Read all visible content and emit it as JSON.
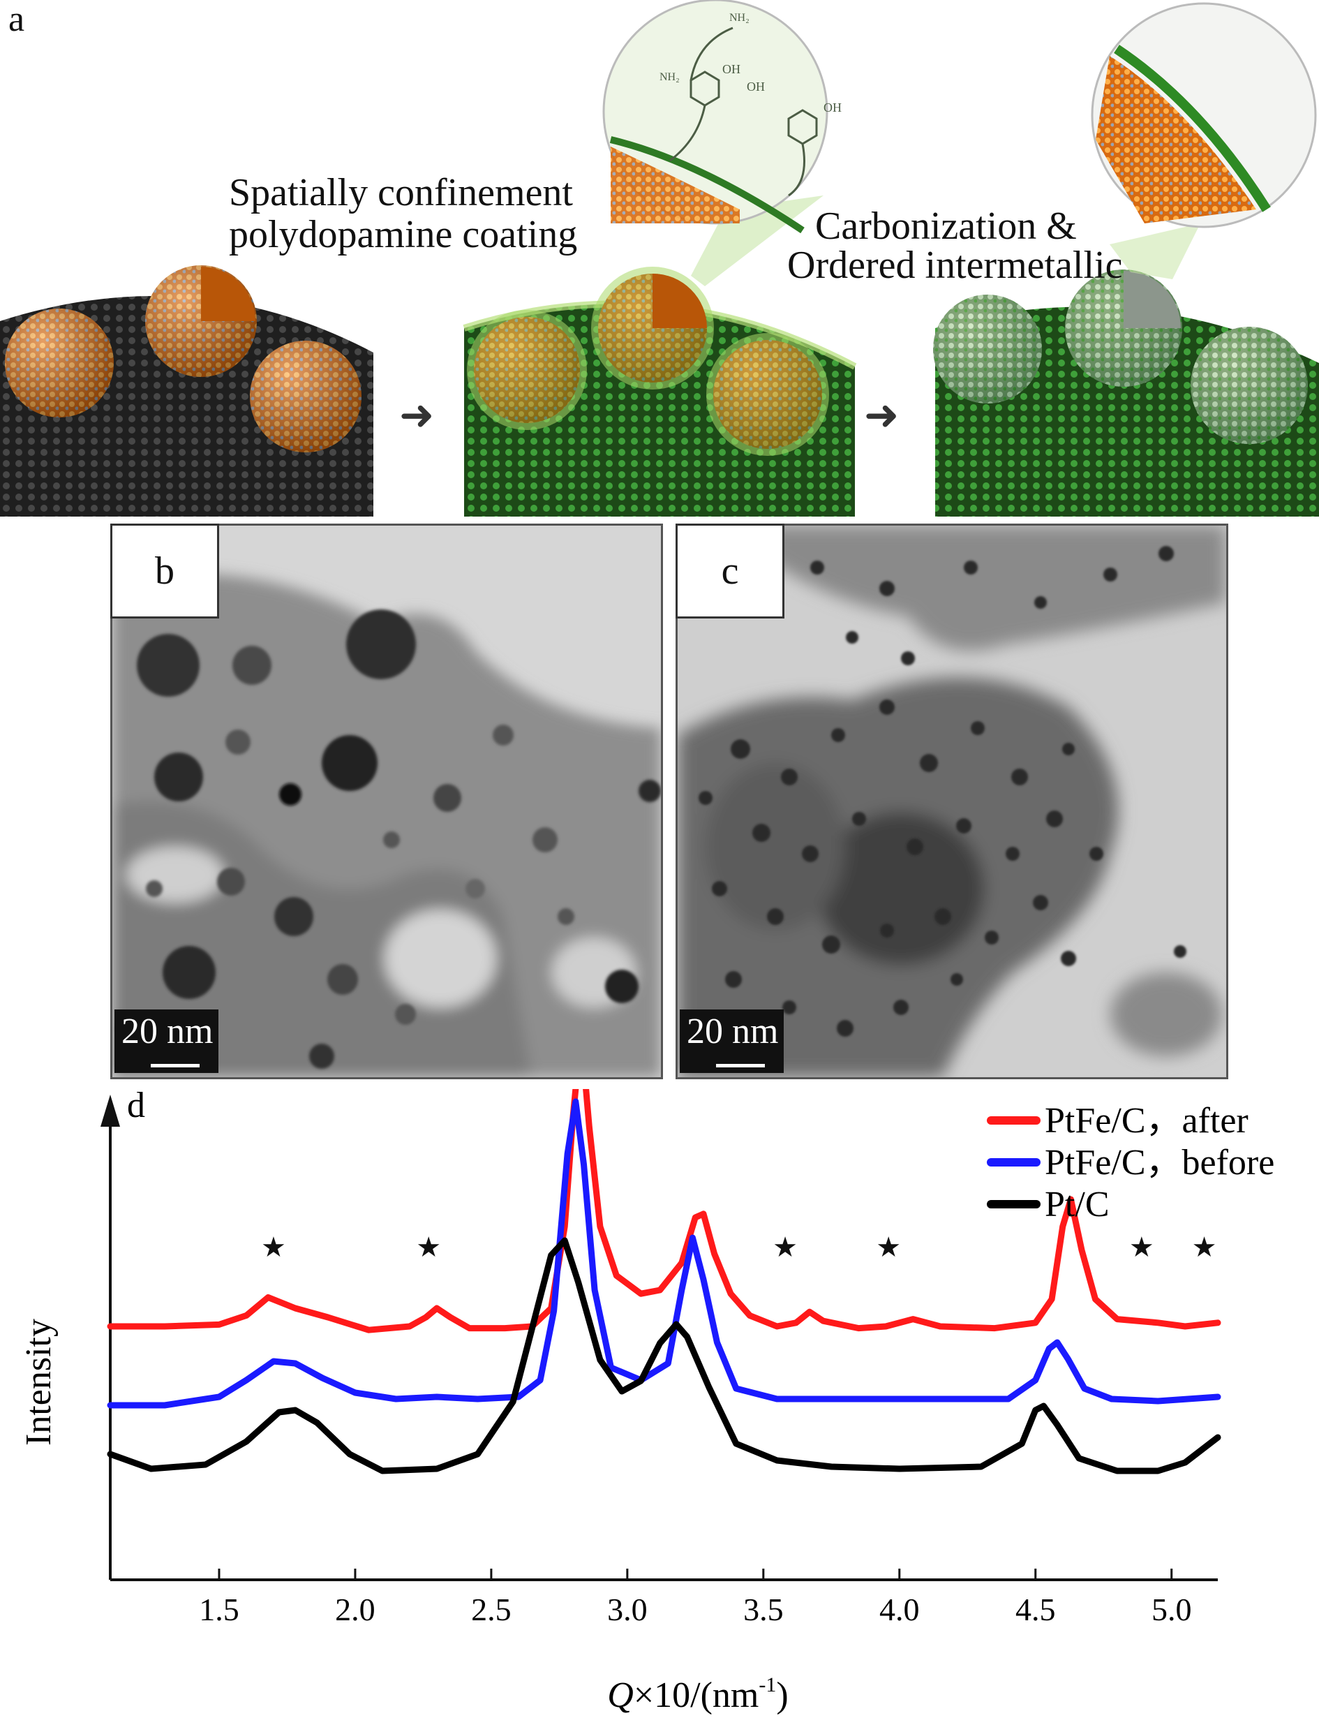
{
  "panel_a": {
    "letter": "a",
    "step1_line1": "Spatially confinement",
    "step1_line2": "polydopamine coating",
    "step2_line1": "Carbonization &",
    "step2_line2": "Ordered intermetallic",
    "arrow": "➜"
  },
  "panel_b": {
    "letter": "b",
    "scale_label": "20 nm"
  },
  "panel_c": {
    "letter": "c",
    "scale_label": "20 nm"
  },
  "chart_data": {
    "type": "line",
    "panel_letter": "d",
    "xlabel_italic": "Q",
    "xlabel_rest": "×10/(nm",
    "xlabel_sup": "-1",
    "xlabel_close": ")",
    "ylabel": "Intensity",
    "xlim": [
      1.1,
      5.17
    ],
    "xticks": [
      1.5,
      2.0,
      2.5,
      3.0,
      3.5,
      4.0,
      4.5,
      5.0
    ],
    "xtick_labels": [
      "1.5",
      "2.0",
      "2.5",
      "3.0",
      "3.5",
      "4.0",
      "4.5",
      "5.0"
    ],
    "y_units": "arbitrary (intensity, offset traces)",
    "legend_position": "top-right",
    "star_marker_x": [
      1.7,
      2.27,
      3.58,
      3.96,
      4.89,
      5.12
    ],
    "series": [
      {
        "name": "PtFe/C, after",
        "label": "PtFe/C，after",
        "color": "#ff1a1a",
        "points": [
          [
            1.1,
            0.0
          ],
          [
            1.3,
            0.0
          ],
          [
            1.5,
            0.01
          ],
          [
            1.6,
            0.06
          ],
          [
            1.68,
            0.16
          ],
          [
            1.78,
            0.1
          ],
          [
            1.9,
            0.05
          ],
          [
            2.05,
            -0.02
          ],
          [
            2.2,
            0.0
          ],
          [
            2.26,
            0.05
          ],
          [
            2.3,
            0.1
          ],
          [
            2.35,
            0.05
          ],
          [
            2.42,
            -0.01
          ],
          [
            2.55,
            -0.01
          ],
          [
            2.65,
            0.0
          ],
          [
            2.72,
            0.1
          ],
          [
            2.77,
            0.55
          ],
          [
            2.8,
            1.15
          ],
          [
            2.83,
            1.62
          ],
          [
            2.86,
            1.1
          ],
          [
            2.9,
            0.55
          ],
          [
            2.96,
            0.28
          ],
          [
            3.05,
            0.18
          ],
          [
            3.12,
            0.2
          ],
          [
            3.2,
            0.35
          ],
          [
            3.25,
            0.6
          ],
          [
            3.28,
            0.62
          ],
          [
            3.32,
            0.4
          ],
          [
            3.38,
            0.18
          ],
          [
            3.45,
            0.06
          ],
          [
            3.55,
            0.0
          ],
          [
            3.62,
            0.02
          ],
          [
            3.67,
            0.08
          ],
          [
            3.72,
            0.03
          ],
          [
            3.85,
            -0.01
          ],
          [
            3.95,
            0.0
          ],
          [
            4.05,
            0.04
          ],
          [
            4.15,
            0.0
          ],
          [
            4.35,
            -0.01
          ],
          [
            4.5,
            0.02
          ],
          [
            4.56,
            0.15
          ],
          [
            4.6,
            0.55
          ],
          [
            4.63,
            0.7
          ],
          [
            4.67,
            0.42
          ],
          [
            4.72,
            0.15
          ],
          [
            4.8,
            0.04
          ],
          [
            4.95,
            0.02
          ],
          [
            5.05,
            0.0
          ],
          [
            5.17,
            0.02
          ]
        ]
      },
      {
        "name": "PtFe/C, before",
        "label": "PtFe/C，before",
        "color": "#1a1aff",
        "points": [
          [
            1.1,
            0.0
          ],
          [
            1.3,
            0.0
          ],
          [
            1.5,
            0.04
          ],
          [
            1.6,
            0.12
          ],
          [
            1.7,
            0.21
          ],
          [
            1.78,
            0.2
          ],
          [
            1.88,
            0.13
          ],
          [
            2.0,
            0.06
          ],
          [
            2.15,
            0.03
          ],
          [
            2.3,
            0.04
          ],
          [
            2.45,
            0.03
          ],
          [
            2.6,
            0.04
          ],
          [
            2.68,
            0.12
          ],
          [
            2.73,
            0.45
          ],
          [
            2.78,
            1.2
          ],
          [
            2.81,
            1.45
          ],
          [
            2.84,
            1.15
          ],
          [
            2.88,
            0.55
          ],
          [
            2.94,
            0.18
          ],
          [
            3.05,
            0.12
          ],
          [
            3.15,
            0.2
          ],
          [
            3.2,
            0.55
          ],
          [
            3.24,
            0.8
          ],
          [
            3.28,
            0.6
          ],
          [
            3.33,
            0.3
          ],
          [
            3.4,
            0.08
          ],
          [
            3.55,
            0.03
          ],
          [
            3.8,
            0.03
          ],
          [
            4.1,
            0.03
          ],
          [
            4.4,
            0.03
          ],
          [
            4.5,
            0.12
          ],
          [
            4.55,
            0.27
          ],
          [
            4.58,
            0.3
          ],
          [
            4.62,
            0.22
          ],
          [
            4.68,
            0.08
          ],
          [
            4.78,
            0.03
          ],
          [
            4.95,
            0.02
          ],
          [
            5.17,
            0.04
          ]
        ]
      },
      {
        "name": "Pt/C",
        "label": "Pt/C",
        "color": "#000000",
        "points": [
          [
            1.1,
            0.1
          ],
          [
            1.25,
            0.03
          ],
          [
            1.45,
            0.05
          ],
          [
            1.6,
            0.16
          ],
          [
            1.72,
            0.3
          ],
          [
            1.78,
            0.31
          ],
          [
            1.86,
            0.25
          ],
          [
            1.98,
            0.1
          ],
          [
            2.1,
            0.02
          ],
          [
            2.3,
            0.03
          ],
          [
            2.45,
            0.1
          ],
          [
            2.58,
            0.35
          ],
          [
            2.66,
            0.75
          ],
          [
            2.72,
            1.05
          ],
          [
            2.77,
            1.12
          ],
          [
            2.82,
            0.92
          ],
          [
            2.9,
            0.55
          ],
          [
            2.98,
            0.4
          ],
          [
            3.05,
            0.45
          ],
          [
            3.12,
            0.63
          ],
          [
            3.18,
            0.72
          ],
          [
            3.22,
            0.66
          ],
          [
            3.3,
            0.42
          ],
          [
            3.4,
            0.15
          ],
          [
            3.55,
            0.07
          ],
          [
            3.75,
            0.04
          ],
          [
            4.0,
            0.03
          ],
          [
            4.3,
            0.04
          ],
          [
            4.45,
            0.15
          ],
          [
            4.5,
            0.31
          ],
          [
            4.53,
            0.33
          ],
          [
            4.58,
            0.24
          ],
          [
            4.66,
            0.08
          ],
          [
            4.8,
            0.02
          ],
          [
            4.95,
            0.02
          ],
          [
            5.05,
            0.06
          ],
          [
            5.17,
            0.18
          ]
        ]
      }
    ]
  },
  "colors": {
    "sphere_orange": "#f08a1c",
    "coating_green": "#3d9a2e",
    "carbon_support": "#2b2b2b"
  }
}
